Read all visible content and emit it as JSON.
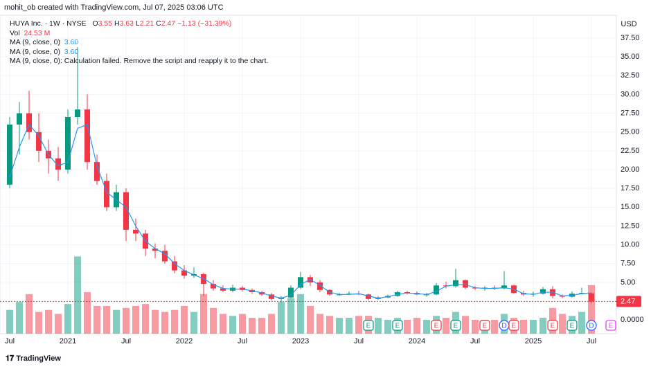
{
  "chart_data": {
    "type": "candlestick",
    "author_line": "mohit_ob created with TradingView.com, Jul 07, 2025 03:06 UTC",
    "symbol": "HUYA Inc. · 1W · NYSE",
    "o_label": "O",
    "h_label": "H",
    "l_label": "L",
    "c_label": "C",
    "change": "−1.13 (−31.39%)",
    "vol_label": "Vol",
    "vol_value": "24.53 M",
    "ma_lines": [
      {
        "name": "MA (9, close, 0)",
        "value": "3.60"
      },
      {
        "name": "MA (9, close, 0)",
        "value": "3.60"
      },
      {
        "name": "MA (9, close, 0): Calculation failed. Remove the script and reapply it to the chart.",
        "value": null
      }
    ],
    "currency": "USD",
    "watermark": "TradingView",
    "categories": [
      "Jul",
      null,
      null,
      null,
      null,
      null,
      "2021",
      null,
      null,
      null,
      null,
      null,
      "Jul",
      null,
      null,
      null,
      null,
      null,
      "2022",
      null,
      null,
      null,
      null,
      null,
      "Jul",
      null,
      null,
      null,
      null,
      null,
      "2023",
      null,
      null,
      null,
      null,
      null,
      "Jul",
      null,
      null,
      null,
      null,
      null,
      "2024",
      null,
      null,
      null,
      null,
      null,
      "Jul",
      null,
      null,
      null,
      null,
      null,
      "2025",
      null,
      null,
      null,
      null,
      null,
      "Jul"
    ],
    "open": [
      18,
      26,
      27.5,
      25,
      22.5,
      21.5,
      20,
      27,
      28,
      21,
      18.5,
      15,
      17,
      12,
      11.5,
      9.5,
      9.2,
      7.8,
      6.6,
      5.9,
      6.1,
      4.8,
      4.2,
      3.9,
      4.3,
      4,
      3.7,
      3.4,
      2.8,
      3,
      4.3,
      5.7,
      5,
      4,
      3.4,
      3.4,
      3.5,
      3.4,
      2.8,
      3,
      3.2,
      3.7,
      3.6,
      3.4,
      3.4,
      4.6,
      4.5,
      5.3,
      4.3,
      4.2,
      4.3,
      4.2,
      4.6,
      3.6,
      3.4,
      3.5,
      4.1,
      3.2,
      3.1,
      3.5,
      3.55
    ],
    "high": [
      27,
      29,
      30.5,
      27.5,
      24,
      23,
      28,
      36.3,
      30,
      22,
      19.5,
      18,
      17.5,
      13.5,
      12,
      10.2,
      10,
      8.5,
      7.3,
      7,
      6.3,
      5.3,
      4.6,
      4.7,
      4.5,
      4.2,
      3.9,
      3.6,
      3.2,
      4.6,
      6.4,
      6,
      5.3,
      4.1,
      3.6,
      3.8,
      3.9,
      3.5,
      3.2,
      3.4,
      3.9,
      3.9,
      3.8,
      3.6,
      4.9,
      5.1,
      6.8,
      5.4,
      4.5,
      4.5,
      4.6,
      6.5,
      4.7,
      3.9,
      3.8,
      4.4,
      4.5,
      3.4,
      3.8,
      4.3,
      3.63
    ],
    "low": [
      17.5,
      22,
      24,
      21,
      19.5,
      18.5,
      19.5,
      26,
      20,
      18,
      14.5,
      14.5,
      10.5,
      10.5,
      8.5,
      8.2,
      7.5,
      6.2,
      5.5,
      5.6,
      3.2,
      3.9,
      3.7,
      3.7,
      3.8,
      3.5,
      3.2,
      2.6,
      2.3,
      2.9,
      4.1,
      4.5,
      3.7,
      3.2,
      3.2,
      3.3,
      3.3,
      2.6,
      2.7,
      2.9,
      3.1,
      3.4,
      3.3,
      3.1,
      3.3,
      4.2,
      4.3,
      4.1,
      4,
      3.9,
      4,
      4.1,
      3.5,
      3.2,
      3.1,
      3.4,
      2.9,
      2.9,
      3,
      3.4,
      2.21
    ],
    "close": [
      26,
      27.5,
      25,
      22.5,
      21.5,
      20,
      27,
      28,
      21,
      18.5,
      15,
      17,
      12,
      11.5,
      9.5,
      9.2,
      7.8,
      6.6,
      5.9,
      6.1,
      4.8,
      4.2,
      3.9,
      4.3,
      4,
      3.7,
      3.4,
      2.8,
      3,
      4.3,
      5.7,
      5,
      4,
      3.4,
      3.4,
      3.5,
      3.4,
      2.8,
      3,
      3.2,
      3.7,
      3.6,
      3.4,
      3.4,
      4.6,
      4.5,
      5.3,
      4.3,
      4.2,
      4.3,
      4.2,
      4.6,
      3.6,
      3.4,
      3.5,
      4.1,
      3.2,
      3.1,
      3.5,
      3.6,
      2.47
    ],
    "volume": [
      12,
      16,
      20,
      11,
      12,
      10,
      15,
      39,
      21,
      14,
      14,
      12,
      13,
      14,
      15,
      12,
      11,
      12,
      14,
      11,
      20,
      13,
      10,
      9,
      10,
      8,
      8,
      10,
      16,
      18,
      20,
      14,
      10,
      9,
      8,
      8,
      9,
      9,
      8,
      7,
      8,
      7,
      8,
      7,
      9,
      8,
      11,
      9,
      7,
      7,
      7,
      10,
      8,
      7,
      7,
      8,
      13,
      10,
      9,
      11,
      24.53
    ],
    "ma": [
      19,
      23,
      26,
      24.5,
      22,
      20.5,
      21,
      25.5,
      26,
      20.5,
      17,
      16,
      15,
      12.5,
      10.5,
      9.5,
      8.8,
      7.5,
      6.6,
      6,
      5.5,
      4.7,
      4.2,
      4.1,
      4.1,
      3.9,
      3.6,
      3.2,
      2.9,
      3.3,
      4.7,
      5.4,
      4.6,
      3.7,
      3.4,
      3.4,
      3.5,
      3.2,
      2.9,
      3.1,
      3.4,
      3.6,
      3.5,
      3.4,
      3.8,
      4.5,
      4.7,
      4.7,
      4.3,
      4.2,
      4.2,
      4.3,
      4.1,
      3.5,
      3.4,
      3.7,
      3.7,
      3.2,
      3.3,
      3.5,
      3.6
    ],
    "ylim": [
      -1.82,
      39.8
    ],
    "yticks": [
      {
        "value": 5,
        "label": "5.00"
      },
      {
        "value": 7.5,
        "label": "7.50"
      },
      {
        "value": 10,
        "label": "10.00"
      },
      {
        "value": 12.5,
        "label": "12.50"
      },
      {
        "value": 15,
        "label": "15.00"
      },
      {
        "value": 17.5,
        "label": "17.50"
      },
      {
        "value": 20,
        "label": "20.00"
      },
      {
        "value": 22.5,
        "label": "22.50"
      },
      {
        "value": 25,
        "label": "25.00"
      },
      {
        "value": 27.5,
        "label": "27.50"
      },
      {
        "value": 30,
        "label": "30.00"
      },
      {
        "value": 32.5,
        "label": "32.50"
      },
      {
        "value": 35,
        "label": "35.00"
      },
      {
        "value": 37.5,
        "label": "37.50"
      }
    ],
    "volume_ylim": [
      0,
      158
    ],
    "volume_ticks": [
      {
        "value": 0,
        "label": "0.0000"
      }
    ],
    "up_color": "#089981",
    "down_color": "#f23645",
    "ma_color": "#2196f3",
    "grid": true,
    "events": [
      {
        "at": 37,
        "label": "E",
        "color": "#089981"
      },
      {
        "at": 40,
        "label": "E",
        "color": "#089981"
      },
      {
        "at": 44,
        "label": "E",
        "color": "#f23645"
      },
      {
        "at": 46,
        "label": "E",
        "color": "#089981"
      },
      {
        "at": 49,
        "label": "E",
        "color": "#f23645"
      },
      {
        "at": 51,
        "label": "D",
        "color": "#2962ff"
      },
      {
        "at": 52,
        "label": "E",
        "color": "#f23645"
      },
      {
        "at": 56,
        "label": "E",
        "color": "#f23645"
      },
      {
        "at": 58,
        "label": "E",
        "color": "#089981"
      },
      {
        "at": 60,
        "label": "D",
        "color": "#2962ff"
      },
      {
        "at": 62,
        "label": "E",
        "color": "#e040fb"
      }
    ]
  }
}
